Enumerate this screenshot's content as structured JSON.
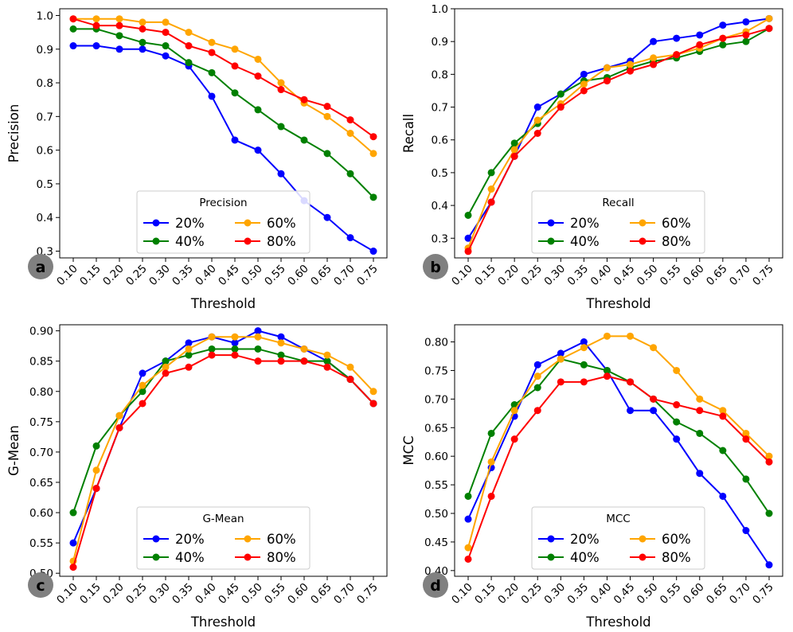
{
  "chart_data": [
    {
      "type": "line",
      "panel_letter": "a",
      "title": "",
      "xlabel": "Threshold",
      "ylabel": "Precision",
      "categories": [
        "0.10",
        "0.15",
        "0.20",
        "0.25",
        "0.30",
        "0.35",
        "0.40",
        "0.45",
        "0.50",
        "0.55",
        "0.60",
        "0.65",
        "0.70",
        "0.75"
      ],
      "ylim": [
        0.28,
        1.02
      ],
      "yticks": [
        "0.3",
        "0.4",
        "0.5",
        "0.6",
        "0.7",
        "0.8",
        "0.9",
        "1.0"
      ],
      "legend_title": "Precision",
      "legend_position": "bottom-center",
      "series": [
        {
          "name": "20%",
          "color": "#0000ff",
          "values": [
            0.91,
            0.91,
            0.9,
            0.9,
            0.88,
            0.85,
            0.76,
            0.63,
            0.6,
            0.53,
            0.45,
            0.4,
            0.34,
            0.3
          ]
        },
        {
          "name": "40%",
          "color": "#008000",
          "values": [
            0.96,
            0.96,
            0.94,
            0.92,
            0.91,
            0.86,
            0.83,
            0.77,
            0.72,
            0.67,
            0.63,
            0.59,
            0.53,
            0.46
          ]
        },
        {
          "name": "60%",
          "color": "#ffa500",
          "values": [
            0.99,
            0.99,
            0.99,
            0.98,
            0.98,
            0.95,
            0.92,
            0.9,
            0.87,
            0.8,
            0.74,
            0.7,
            0.65,
            0.59
          ]
        },
        {
          "name": "80%",
          "color": "#ff0000",
          "values": [
            0.99,
            0.97,
            0.97,
            0.96,
            0.95,
            0.91,
            0.89,
            0.85,
            0.82,
            0.78,
            0.75,
            0.73,
            0.69,
            0.64
          ]
        }
      ]
    },
    {
      "type": "line",
      "panel_letter": "b",
      "title": "",
      "xlabel": "Threshold",
      "ylabel": "Recall",
      "categories": [
        "0.10",
        "0.15",
        "0.20",
        "0.25",
        "0.30",
        "0.35",
        "0.40",
        "0.45",
        "0.50",
        "0.55",
        "0.60",
        "0.65",
        "0.70",
        "0.75"
      ],
      "ylim": [
        0.24,
        1.0
      ],
      "yticks": [
        "0.3",
        "0.4",
        "0.5",
        "0.6",
        "0.7",
        "0.8",
        "0.9",
        "1.0"
      ],
      "legend_title": "Recall",
      "legend_position": "bottom-center",
      "series": [
        {
          "name": "20%",
          "color": "#0000ff",
          "values": [
            0.3,
            0.41,
            0.55,
            0.7,
            0.74,
            0.8,
            0.82,
            0.84,
            0.9,
            0.91,
            0.92,
            0.95,
            0.96,
            0.97
          ]
        },
        {
          "name": "40%",
          "color": "#008000",
          "values": [
            0.37,
            0.5,
            0.59,
            0.65,
            0.74,
            0.78,
            0.79,
            0.82,
            0.84,
            0.85,
            0.87,
            0.89,
            0.9,
            0.94
          ]
        },
        {
          "name": "60%",
          "color": "#ffa500",
          "values": [
            0.27,
            0.45,
            0.57,
            0.66,
            0.71,
            0.77,
            0.82,
            0.83,
            0.85,
            0.86,
            0.88,
            0.91,
            0.93,
            0.97
          ]
        },
        {
          "name": "80%",
          "color": "#ff0000",
          "values": [
            0.26,
            0.41,
            0.55,
            0.62,
            0.7,
            0.75,
            0.78,
            0.81,
            0.83,
            0.86,
            0.89,
            0.91,
            0.92,
            0.94
          ]
        }
      ]
    },
    {
      "type": "line",
      "panel_letter": "c",
      "title": "",
      "xlabel": "Threshold",
      "ylabel": "G-Mean",
      "categories": [
        "0.10",
        "0.15",
        "0.20",
        "0.25",
        "0.30",
        "0.35",
        "0.40",
        "0.45",
        "0.50",
        "0.55",
        "0.60",
        "0.65",
        "0.70",
        "0.75"
      ],
      "ylim": [
        0.495,
        0.91
      ],
      "yticks": [
        "0.50",
        "0.55",
        "0.60",
        "0.65",
        "0.70",
        "0.75",
        "0.80",
        "0.85",
        "0.90"
      ],
      "legend_title": "G-Mean",
      "legend_position": "bottom-center",
      "series": [
        {
          "name": "20%",
          "color": "#0000ff",
          "values": [
            0.55,
            0.64,
            0.74,
            0.83,
            0.85,
            0.88,
            0.89,
            0.88,
            0.9,
            0.89,
            0.87,
            0.85,
            0.82,
            0.78
          ]
        },
        {
          "name": "40%",
          "color": "#008000",
          "values": [
            0.6,
            0.71,
            0.76,
            0.8,
            0.85,
            0.86,
            0.87,
            0.87,
            0.87,
            0.86,
            0.85,
            0.85,
            0.82,
            0.78
          ]
        },
        {
          "name": "60%",
          "color": "#ffa500",
          "values": [
            0.52,
            0.67,
            0.76,
            0.81,
            0.84,
            0.87,
            0.89,
            0.89,
            0.89,
            0.88,
            0.87,
            0.86,
            0.84,
            0.8
          ]
        },
        {
          "name": "80%",
          "color": "#ff0000",
          "values": [
            0.51,
            0.64,
            0.74,
            0.78,
            0.83,
            0.84,
            0.86,
            0.86,
            0.85,
            0.85,
            0.85,
            0.84,
            0.82,
            0.78
          ]
        }
      ]
    },
    {
      "type": "line",
      "panel_letter": "d",
      "title": "",
      "xlabel": "Threshold",
      "ylabel": "MCC",
      "categories": [
        "0.10",
        "0.15",
        "0.20",
        "0.25",
        "0.30",
        "0.35",
        "0.40",
        "0.45",
        "0.50",
        "0.55",
        "0.60",
        "0.65",
        "0.70",
        "0.75"
      ],
      "ylim": [
        0.39,
        0.83
      ],
      "yticks": [
        "0.40",
        "0.45",
        "0.50",
        "0.55",
        "0.60",
        "0.65",
        "0.70",
        "0.75",
        "0.80"
      ],
      "legend_title": "MCC",
      "legend_position": "bottom-center",
      "series": [
        {
          "name": "20%",
          "color": "#0000ff",
          "values": [
            0.49,
            0.58,
            0.67,
            0.76,
            0.78,
            0.8,
            0.75,
            0.68,
            0.68,
            0.63,
            0.57,
            0.53,
            0.47,
            0.41
          ]
        },
        {
          "name": "40%",
          "color": "#008000",
          "values": [
            0.53,
            0.64,
            0.69,
            0.72,
            0.77,
            0.76,
            0.75,
            0.73,
            0.7,
            0.66,
            0.64,
            0.61,
            0.56,
            0.5
          ]
        },
        {
          "name": "60%",
          "color": "#ffa500",
          "values": [
            0.44,
            0.59,
            0.68,
            0.74,
            0.77,
            0.79,
            0.81,
            0.81,
            0.79,
            0.75,
            0.7,
            0.68,
            0.64,
            0.6
          ]
        },
        {
          "name": "80%",
          "color": "#ff0000",
          "values": [
            0.42,
            0.53,
            0.63,
            0.68,
            0.73,
            0.73,
            0.74,
            0.73,
            0.7,
            0.69,
            0.68,
            0.67,
            0.63,
            0.59
          ]
        }
      ]
    }
  ]
}
